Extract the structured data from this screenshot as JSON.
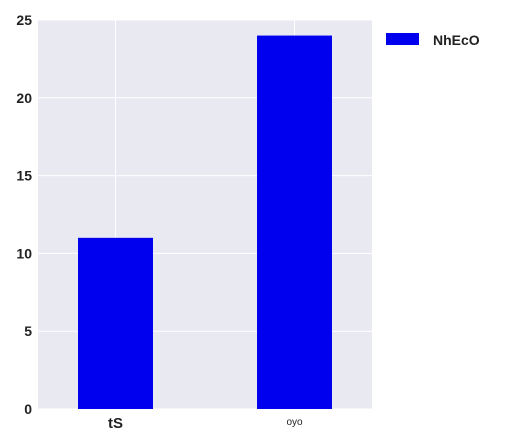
{
  "chart_data": {
    "type": "bar",
    "categories": [
      "tS",
      "oyo"
    ],
    "series": [
      {
        "name": "NhEcO",
        "values": [
          11,
          24
        ]
      }
    ],
    "ylim": [
      0,
      25
    ],
    "yticks": [
      0,
      5,
      10,
      15,
      20,
      25
    ],
    "grid": true,
    "legend": "outside-top-right",
    "colors": {
      "bar": "#0000ee",
      "plot_background": "#e9e9f1",
      "grid": "#ffffff"
    }
  }
}
